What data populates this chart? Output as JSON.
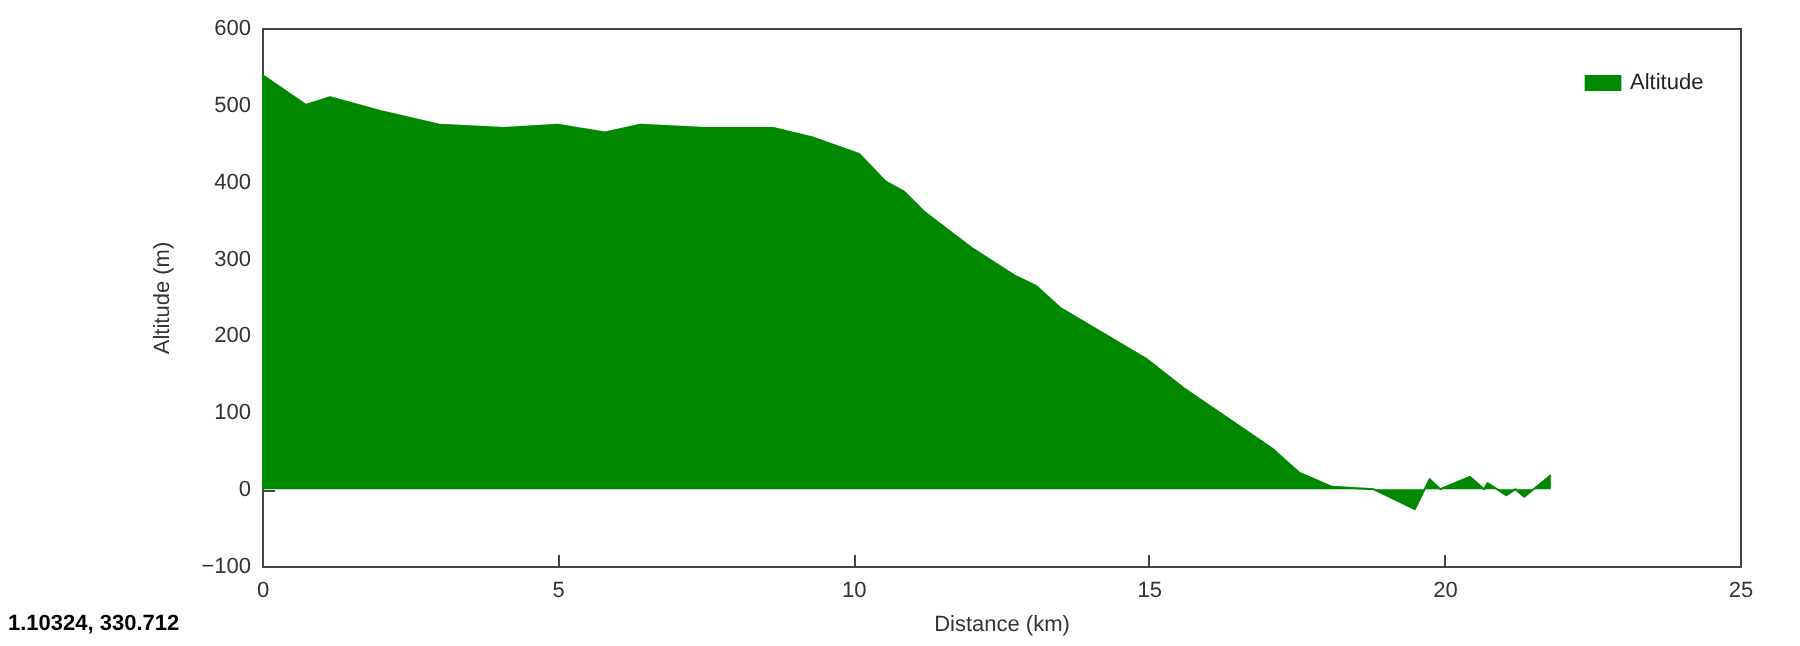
{
  "chart_data": {
    "type": "area",
    "xlabel": "Distance (km)",
    "ylabel": "Altitude (m)",
    "x": [
      0,
      0.74,
      1.15,
      2.0,
      3.0,
      4.1,
      5.0,
      5.8,
      6.4,
      7.5,
      8.65,
      9.3,
      10.1,
      10.55,
      10.86,
      11.2,
      12.0,
      12.75,
      13.1,
      13.5,
      14.95,
      15.6,
      16.3,
      17.1,
      17.55,
      18.1,
      18.8,
      19.5,
      19.75,
      19.93,
      20.43,
      20.67,
      20.73,
      21.05,
      21.2,
      21.35,
      21.8
    ],
    "series": [
      {
        "name": "Altitude",
        "color": "#008800",
        "values": [
          539,
          500,
          510,
          492,
          474,
          470,
          474,
          464,
          474,
          470,
          470,
          458,
          436,
          400,
          387,
          361,
          314,
          277,
          264,
          236,
          170,
          131,
          94,
          52,
          21,
          3,
          0,
          -26,
          13,
          0,
          16,
          0,
          8,
          -8,
          0,
          -10,
          18
        ]
      }
    ],
    "xlim": [
      0,
      25
    ],
    "xticks": [
      0,
      5,
      10,
      15,
      20,
      25
    ],
    "ylim": [
      -100,
      600
    ],
    "yticks": [
      -100,
      0,
      100,
      200,
      300,
      400,
      500,
      600
    ],
    "legend": "top right",
    "grid": false,
    "annotations": [
      "1.10324,  330.712"
    ]
  }
}
